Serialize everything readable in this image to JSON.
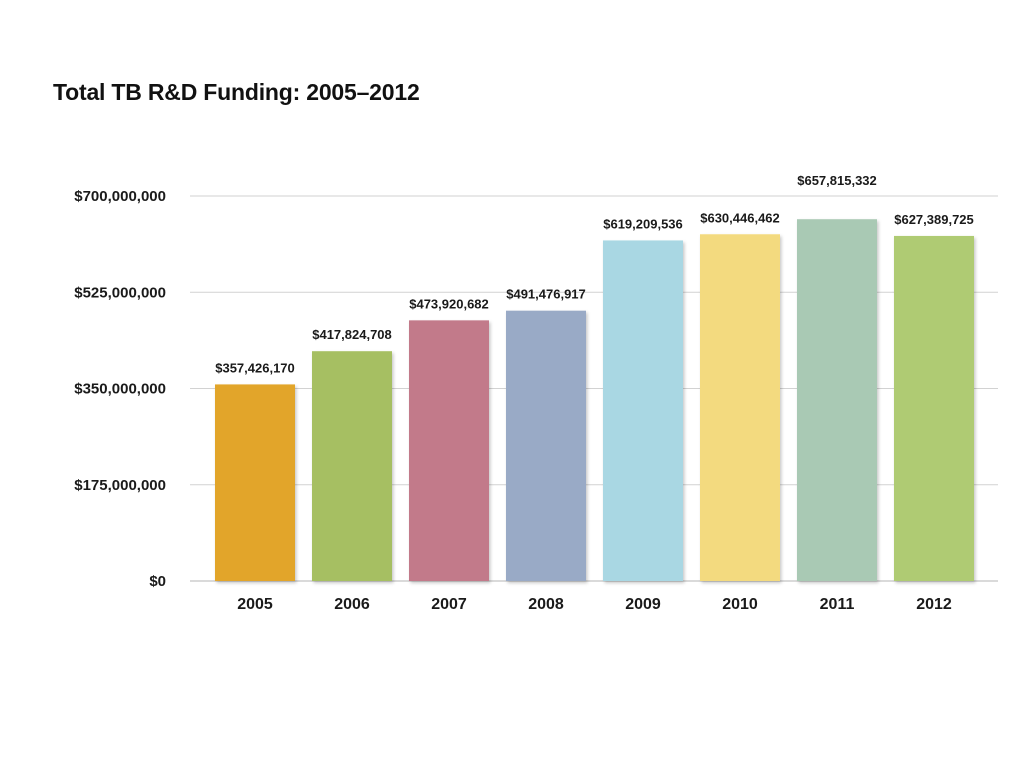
{
  "chart_data": {
    "type": "bar",
    "title": "Total TB R&D Funding: 2005–2012",
    "xlabel": "",
    "ylabel": "",
    "categories": [
      "2005",
      "2006",
      "2007",
      "2008",
      "2009",
      "2010",
      "2011",
      "2012"
    ],
    "values": [
      357426170,
      417824708,
      473920682,
      491476917,
      619209536,
      630446462,
      657815332,
      627389725
    ],
    "value_labels": [
      "$357,426,170",
      "$417,824,708",
      "$473,920,682",
      "$491,476,917",
      "$619,209,536",
      "$630,446,462",
      "$657,815,332",
      "$627,389,725"
    ],
    "bar_colors": [
      "#e2a52b",
      "#a6bf62",
      "#c27a8a",
      "#99aac6",
      "#a9d7e3",
      "#f3da7f",
      "#a9c9b4",
      "#afcb73"
    ],
    "ylim": [
      0,
      700000000
    ],
    "yticks": [
      0,
      175000000,
      350000000,
      525000000,
      700000000
    ],
    "ytick_labels": [
      "$0",
      "$175,000,000",
      "$350,000,000",
      "$525,000,000",
      "$700,000,000"
    ],
    "grid": true,
    "legend": "none"
  }
}
